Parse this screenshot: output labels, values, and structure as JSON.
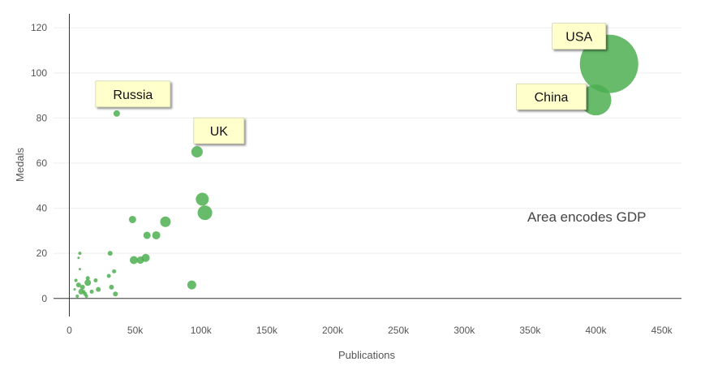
{
  "chart_data": {
    "type": "scatter",
    "xlabel": "Publications",
    "ylabel": "Medals",
    "xlim": [
      -12000,
      465000
    ],
    "ylim": [
      -8,
      128
    ],
    "x_ticks": [
      0,
      50000,
      100000,
      150000,
      200000,
      250000,
      300000,
      350000,
      400000,
      450000
    ],
    "x_tick_labels": [
      "0",
      "50k",
      "100k",
      "150k",
      "200k",
      "250k",
      "300k",
      "350k",
      "400k",
      "450k"
    ],
    "y_ticks": [
      0,
      20,
      40,
      60,
      80,
      100,
      120
    ],
    "y_tick_labels": [
      "0",
      "20",
      "40",
      "60",
      "80",
      "100",
      "120"
    ],
    "grid": true,
    "size_note": "Area encodes GDP",
    "colors": {
      "point": "#4caf50",
      "callout_fill": "#ffffcc",
      "gridline": "#eeeeee",
      "axis": "#333333"
    },
    "points": [
      {
        "x": 410000,
        "y": 104,
        "size": 36,
        "label": "USA"
      },
      {
        "x": 400000,
        "y": 88,
        "size": 19,
        "label": "China"
      },
      {
        "x": 36000,
        "y": 82,
        "size": 4,
        "label": "Russia"
      },
      {
        "x": 97000,
        "y": 65,
        "size": 7,
        "label": "UK"
      },
      {
        "x": 101000,
        "y": 44,
        "size": 8
      },
      {
        "x": 103000,
        "y": 38,
        "size": 9
      },
      {
        "x": 73000,
        "y": 34,
        "size": 6.5
      },
      {
        "x": 48000,
        "y": 35,
        "size": 4.5
      },
      {
        "x": 59000,
        "y": 28,
        "size": 4.5
      },
      {
        "x": 66000,
        "y": 28,
        "size": 5
      },
      {
        "x": 49000,
        "y": 17,
        "size": 5
      },
      {
        "x": 54000,
        "y": 17,
        "size": 4.5
      },
      {
        "x": 58000,
        "y": 18,
        "size": 5
      },
      {
        "x": 93000,
        "y": 6,
        "size": 5.5
      },
      {
        "x": 31000,
        "y": 20,
        "size": 3
      },
      {
        "x": 34000,
        "y": 12,
        "size": 2.5
      },
      {
        "x": 30000,
        "y": 10,
        "size": 2.5
      },
      {
        "x": 32000,
        "y": 5,
        "size": 3
      },
      {
        "x": 35000,
        "y": 2,
        "size": 3
      },
      {
        "x": 20000,
        "y": 8,
        "size": 2.5
      },
      {
        "x": 22000,
        "y": 4,
        "size": 3
      },
      {
        "x": 14000,
        "y": 9,
        "size": 2.5
      },
      {
        "x": 14000,
        "y": 7,
        "size": 4
      },
      {
        "x": 17000,
        "y": 3,
        "size": 2.5
      },
      {
        "x": 8000,
        "y": 20,
        "size": 2
      },
      {
        "x": 7000,
        "y": 18,
        "size": 1.5
      },
      {
        "x": 8000,
        "y": 13,
        "size": 1.5
      },
      {
        "x": 5000,
        "y": 8,
        "size": 2
      },
      {
        "x": 7000,
        "y": 6,
        "size": 3
      },
      {
        "x": 10000,
        "y": 5,
        "size": 3
      },
      {
        "x": 9000,
        "y": 3,
        "size": 3.5
      },
      {
        "x": 12000,
        "y": 2,
        "size": 2.5
      },
      {
        "x": 6000,
        "y": 1,
        "size": 2
      },
      {
        "x": 13000,
        "y": 1,
        "size": 2
      },
      {
        "x": 4000,
        "y": 4,
        "size": 1.5
      },
      {
        "x": 11000,
        "y": 3,
        "size": 2
      }
    ]
  }
}
